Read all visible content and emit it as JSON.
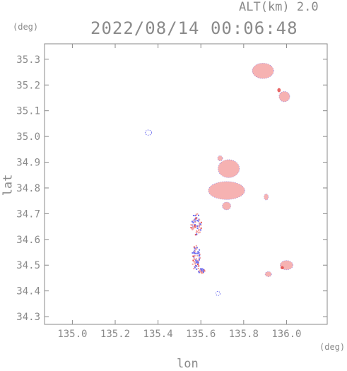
{
  "header": {
    "altitude_label": "ALT(km) 2.0",
    "timestamp": "2022/08/14 00:06:48"
  },
  "chart_data": {
    "type": "heatmap",
    "title": "2022/08/14 00:06:48",
    "subtitle": "ALT(km) 2.0",
    "xlabel": "lon",
    "ylabel": "lat",
    "x_unit": "(deg)",
    "y_unit": "(deg)",
    "xlim": [
      134.87,
      136.19
    ],
    "ylim": [
      34.27,
      35.36
    ],
    "x_ticks": [
      "135.0",
      "135.2",
      "135.4",
      "135.6",
      "135.8",
      "136.0"
    ],
    "y_ticks": [
      "34.3",
      "34.4",
      "34.5",
      "34.6",
      "34.7",
      "34.8",
      "34.9",
      "35.0",
      "35.1",
      "35.2",
      "35.3"
    ],
    "grid": false,
    "colors": {
      "positive": "#f4a5a5",
      "strong_positive": "#e44a4a",
      "negative": "#6f6ff0",
      "axis": "#8a8a8a"
    },
    "echo_regions": [
      {
        "name": "ne-band",
        "lon": 135.89,
        "lat": 35.255,
        "rlon": 0.05,
        "rlat": 0.03,
        "sign": "positive"
      },
      {
        "name": "ne-tail",
        "lon": 135.99,
        "lat": 35.155,
        "rlon": 0.025,
        "rlat": 0.02,
        "sign": "positive"
      },
      {
        "name": "ne-core",
        "lon": 135.965,
        "lat": 35.18,
        "rlon": 0.008,
        "rlat": 0.008,
        "sign": "strong_positive"
      },
      {
        "name": "north-cell",
        "lon": 135.73,
        "lat": 34.875,
        "rlon": 0.05,
        "rlat": 0.035,
        "sign": "positive"
      },
      {
        "name": "north-cell-top",
        "lon": 135.69,
        "lat": 34.915,
        "rlon": 0.012,
        "rlat": 0.01,
        "sign": "positive"
      },
      {
        "name": "central-band",
        "lon": 135.72,
        "lat": 34.79,
        "rlon": 0.085,
        "rlat": 0.035,
        "sign": "positive"
      },
      {
        "name": "central-tail",
        "lon": 135.72,
        "lat": 34.73,
        "rlon": 0.02,
        "rlat": 0.015,
        "sign": "positive"
      },
      {
        "name": "east-spot",
        "lon": 135.905,
        "lat": 34.765,
        "rlon": 0.01,
        "rlat": 0.012,
        "sign": "positive"
      },
      {
        "name": "southeast-cell",
        "lon": 136.0,
        "lat": 34.5,
        "rlon": 0.03,
        "rlat": 0.018,
        "sign": "positive"
      },
      {
        "name": "southeast-core",
        "lon": 135.98,
        "lat": 34.49,
        "rlon": 0.008,
        "rlat": 0.006,
        "sign": "strong_positive"
      },
      {
        "name": "southeast-small",
        "lon": 135.915,
        "lat": 34.465,
        "rlon": 0.015,
        "rlat": 0.01,
        "sign": "positive"
      },
      {
        "name": "nw-speck",
        "lon": 135.355,
        "lat": 35.015,
        "rlon": 0.015,
        "rlat": 0.01,
        "sign": "negative"
      },
      {
        "name": "south-speck",
        "lon": 135.68,
        "lat": 34.39,
        "rlon": 0.01,
        "rlat": 0.008,
        "sign": "negative"
      },
      {
        "name": "west-cluster-a",
        "lon": 135.575,
        "lat": 34.66,
        "rlon": 0.025,
        "rlat": 0.045,
        "sign": "mixed"
      },
      {
        "name": "west-cluster-b",
        "lon": 135.575,
        "lat": 34.53,
        "rlon": 0.02,
        "rlat": 0.05,
        "sign": "mixed"
      },
      {
        "name": "west-cluster-c",
        "lon": 135.6,
        "lat": 34.48,
        "rlon": 0.015,
        "rlat": 0.01,
        "sign": "mixed"
      }
    ]
  }
}
